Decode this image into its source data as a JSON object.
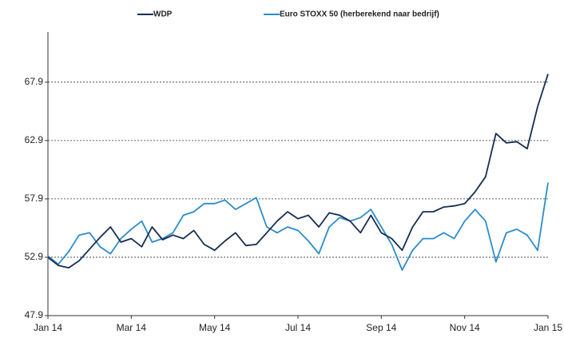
{
  "chart_data": {
    "type": "line",
    "x": [
      0,
      0.25,
      0.5,
      0.75,
      1,
      1.25,
      1.5,
      1.75,
      2,
      2.25,
      2.5,
      2.75,
      3,
      3.25,
      3.5,
      3.75,
      4,
      4.25,
      4.5,
      4.75,
      5,
      5.25,
      5.5,
      5.75,
      6,
      6.25,
      6.5,
      6.75,
      7,
      7.25,
      7.5,
      7.75,
      8,
      8.25,
      8.5,
      8.75,
      9,
      9.25,
      9.5,
      9.75,
      10,
      10.25,
      10.5,
      10.75,
      11,
      11.25,
      11.5,
      11.75,
      12
    ],
    "series": [
      {
        "name": "WDP",
        "color": "#172d50",
        "values": [
          52.9,
          52.2,
          52.0,
          52.6,
          53.6,
          54.6,
          55.5,
          54.2,
          54.5,
          53.8,
          55.5,
          54.4,
          54.8,
          54.5,
          55.2,
          54.0,
          53.5,
          54.3,
          55.0,
          53.9,
          54.0,
          55.0,
          56.0,
          56.8,
          56.2,
          56.5,
          55.5,
          56.7,
          56.5,
          56.0,
          55.0,
          56.5,
          55.0,
          54.5,
          53.5,
          55.5,
          56.8,
          56.8,
          57.2,
          57.3,
          57.5,
          58.5,
          59.8,
          63.5,
          62.7,
          62.8,
          62.2,
          65.8,
          68.6
        ]
      },
      {
        "name": "Euro STOXX 50 (herberekend naar bedrijf)",
        "color": "#2b8ccc",
        "values": [
          53.0,
          52.3,
          53.4,
          54.8,
          55.0,
          53.8,
          53.2,
          54.5,
          55.3,
          56.0,
          54.2,
          54.5,
          55.0,
          56.5,
          56.8,
          57.5,
          57.5,
          57.8,
          57.0,
          57.5,
          58.0,
          55.5,
          55.0,
          55.5,
          55.2,
          54.3,
          53.2,
          55.5,
          56.3,
          56.0,
          56.3,
          57.0,
          55.5,
          54.0,
          51.8,
          53.5,
          54.5,
          54.5,
          55.0,
          54.5,
          56.0,
          57.0,
          56.0,
          52.5,
          55.0,
          55.3,
          54.8,
          53.5,
          59.3
        ]
      }
    ],
    "xlim": [
      0,
      12
    ],
    "xticks": [
      {
        "value": 0,
        "label": "Jan 14"
      },
      {
        "value": 2,
        "label": "Mar 14"
      },
      {
        "value": 4,
        "label": "May 14"
      },
      {
        "value": 6,
        "label": "Jul 14"
      },
      {
        "value": 8,
        "label": "Sep 14"
      },
      {
        "value": 10,
        "label": "Nov 14"
      },
      {
        "value": 12,
        "label": "Jan 15"
      }
    ],
    "ylim": [
      47.9,
      72.2
    ],
    "yticks": [
      47.9,
      52.9,
      57.9,
      62.9,
      67.9
    ],
    "grid": true
  }
}
